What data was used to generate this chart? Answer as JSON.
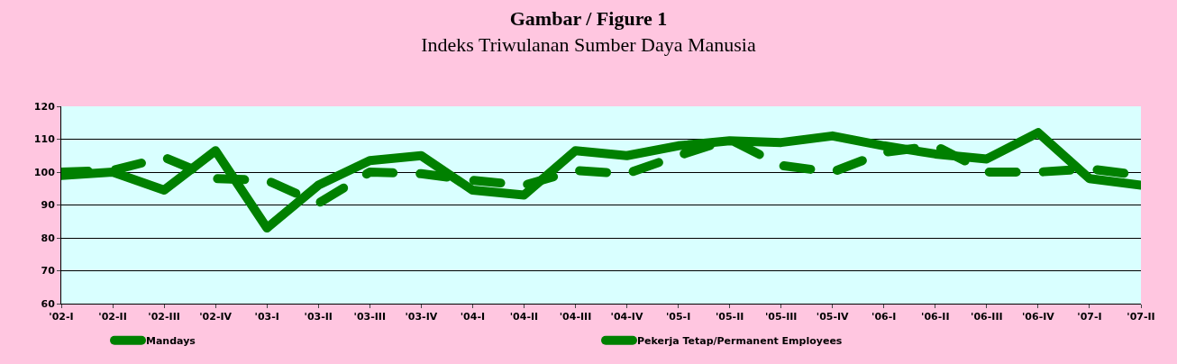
{
  "chart_data": {
    "type": "line",
    "title": "Gambar / Figure 1",
    "subtitle": "Indeks Triwulanan Sumber Daya Manusia",
    "categories": [
      "'02-I",
      "'02-II",
      "'02-III",
      "'02-IV",
      "'03-I",
      "'03-II",
      "'03-III",
      "'03-IV",
      "'04-I",
      "'04-II",
      "'04-III",
      "'04-IV",
      "'05-I",
      "'05-II",
      "'05-III",
      "'05-IV",
      "'06-I",
      "'06-II",
      "'06-III",
      "'06-IV",
      "'07-I",
      "'07-II"
    ],
    "series": [
      {
        "name": "Mandays",
        "color": "#008000",
        "line_style": "solid",
        "values": [
          99,
          100,
          94.5,
          106.5,
          83,
          96,
          103.5,
          105,
          94.5,
          93,
          106.5,
          105,
          108,
          109.5,
          109,
          111,
          108,
          105.5,
          104,
          112,
          98,
          96
        ]
      },
      {
        "name": "Pekerja Tetap/Permanent Employees",
        "color": "#008000",
        "line_style": "dashed",
        "values": [
          100,
          100.5,
          104.5,
          98,
          97.5,
          90.5,
          100,
          99.5,
          97.5,
          96,
          100.5,
          99.5,
          105,
          110,
          102,
          100,
          106,
          108,
          100,
          100,
          101,
          99
        ]
      }
    ],
    "ylim": [
      60,
      120
    ],
    "yticks": [
      60,
      70,
      80,
      90,
      100,
      110,
      120
    ],
    "grid": "y",
    "legend": "bottom",
    "marker": "none"
  }
}
